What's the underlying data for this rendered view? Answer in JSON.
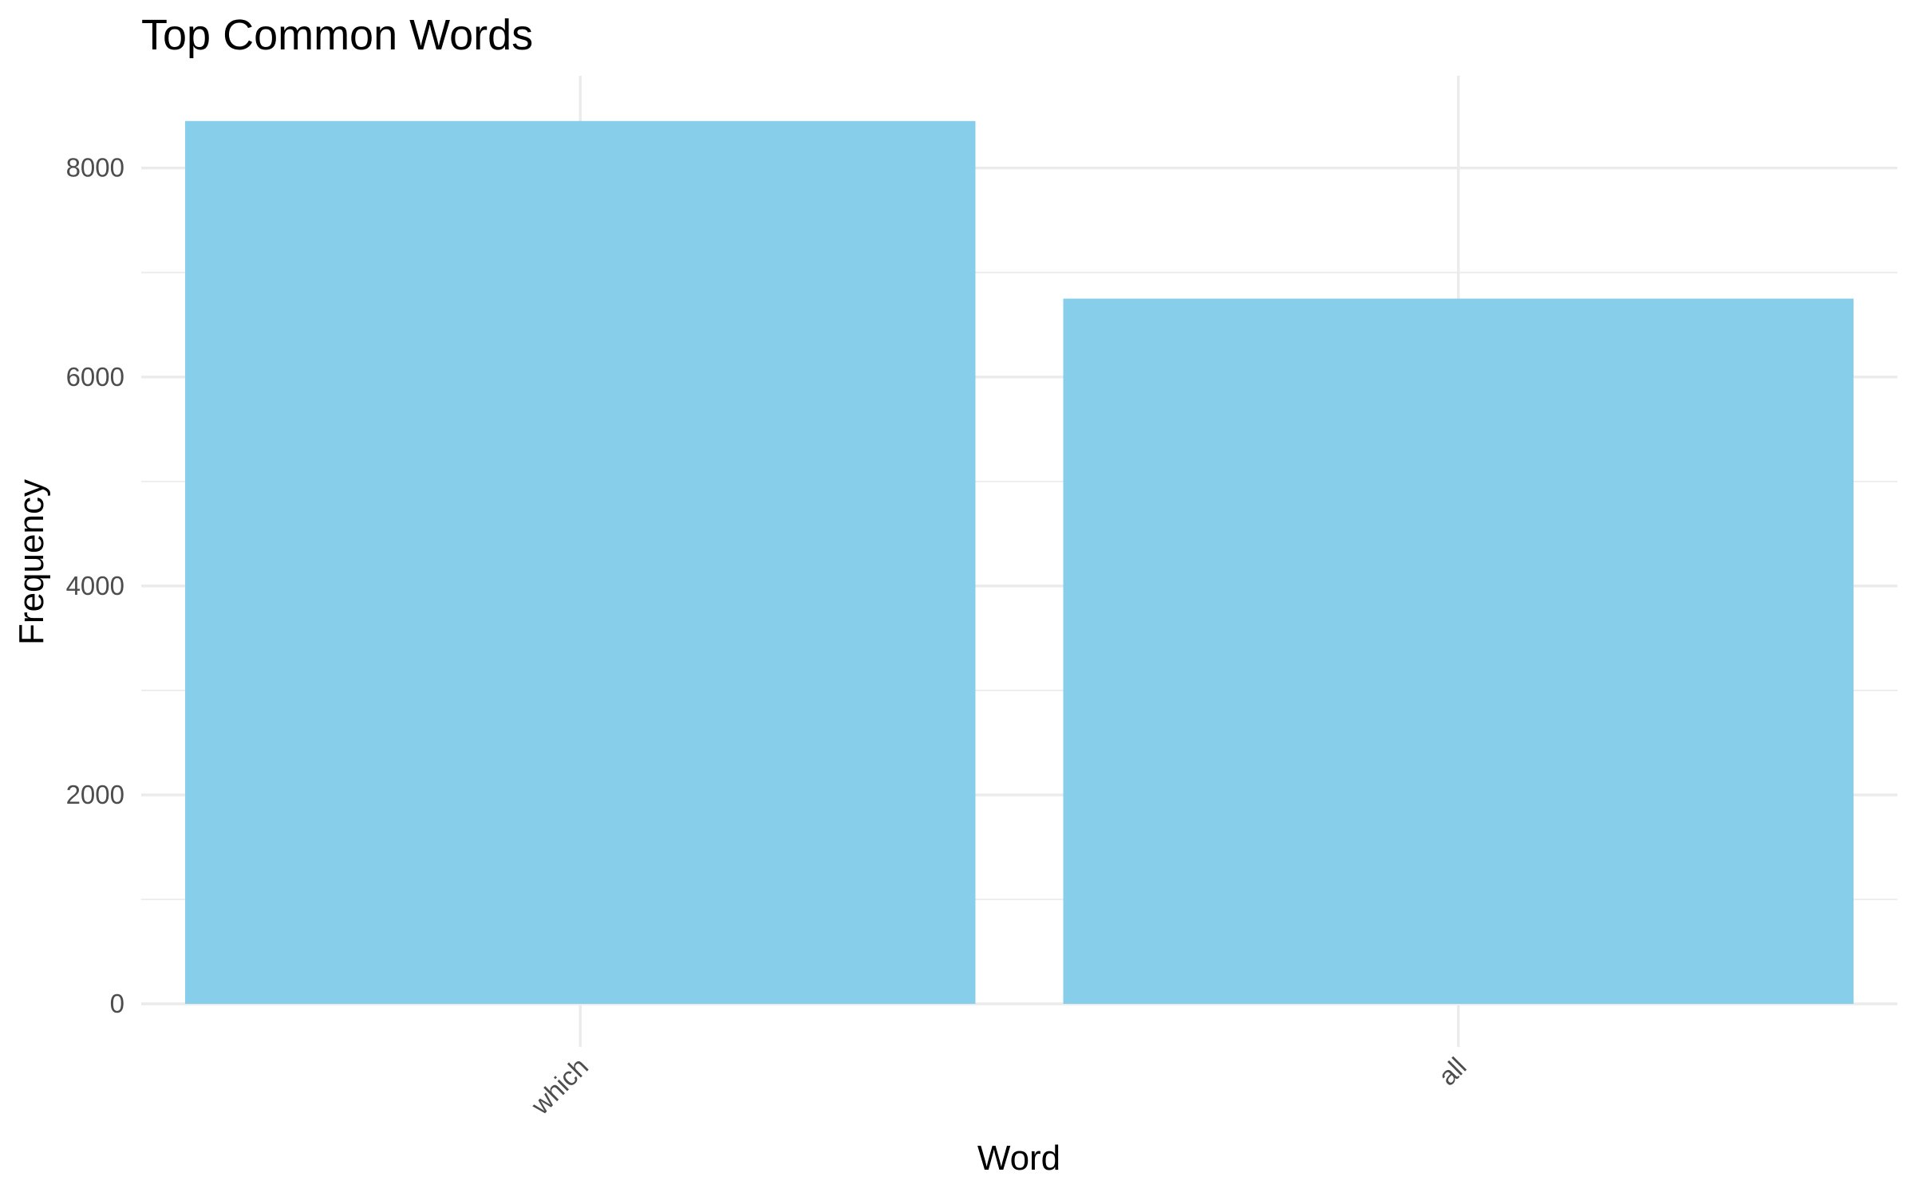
{
  "chart_data": {
    "type": "bar",
    "title": "Top Common Words",
    "xlabel": "Word",
    "ylabel": "Frequency",
    "categories": [
      "which",
      "all"
    ],
    "values": [
      8450,
      6750
    ],
    "ylim": [
      0,
      8850
    ],
    "yticks": [
      0,
      2000,
      4000,
      6000,
      8000
    ],
    "grid": true,
    "legend": "none",
    "bar_color": "#87CEEB",
    "x_tick_label_rotation": "45 degrees"
  }
}
